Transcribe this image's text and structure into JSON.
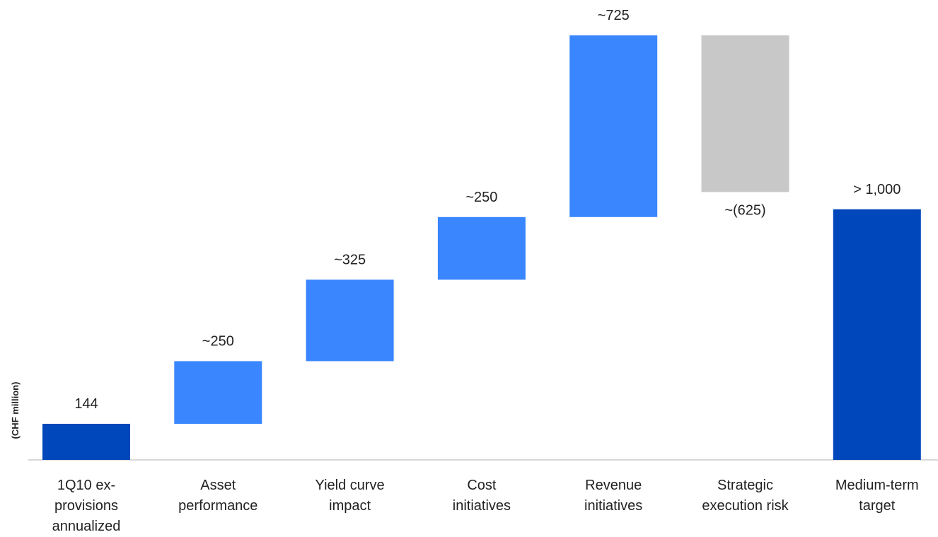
{
  "chart_data": {
    "type": "waterfall",
    "y_label": "(CHF million)",
    "categories": [
      "1Q10 ex-\nprovisions\nannualized",
      "Asset\nperformance",
      "Yield curve\nimpact",
      "Cost\ninitiatives",
      "Revenue\ninitiatives",
      "Strategic\nexecution risk",
      "Medium-term\ntarget"
    ],
    "values": [
      144,
      250,
      325,
      250,
      725,
      -625,
      1000
    ],
    "value_labels": [
      "144",
      "~250",
      "~325",
      "~250",
      "~725",
      "~(625)",
      "> 1,000"
    ],
    "colors": [
      "#0047bb",
      "#3a86ff",
      "#3a86ff",
      "#3a86ff",
      "#3a86ff",
      "#c8c8c8",
      "#0047bb"
    ]
  }
}
